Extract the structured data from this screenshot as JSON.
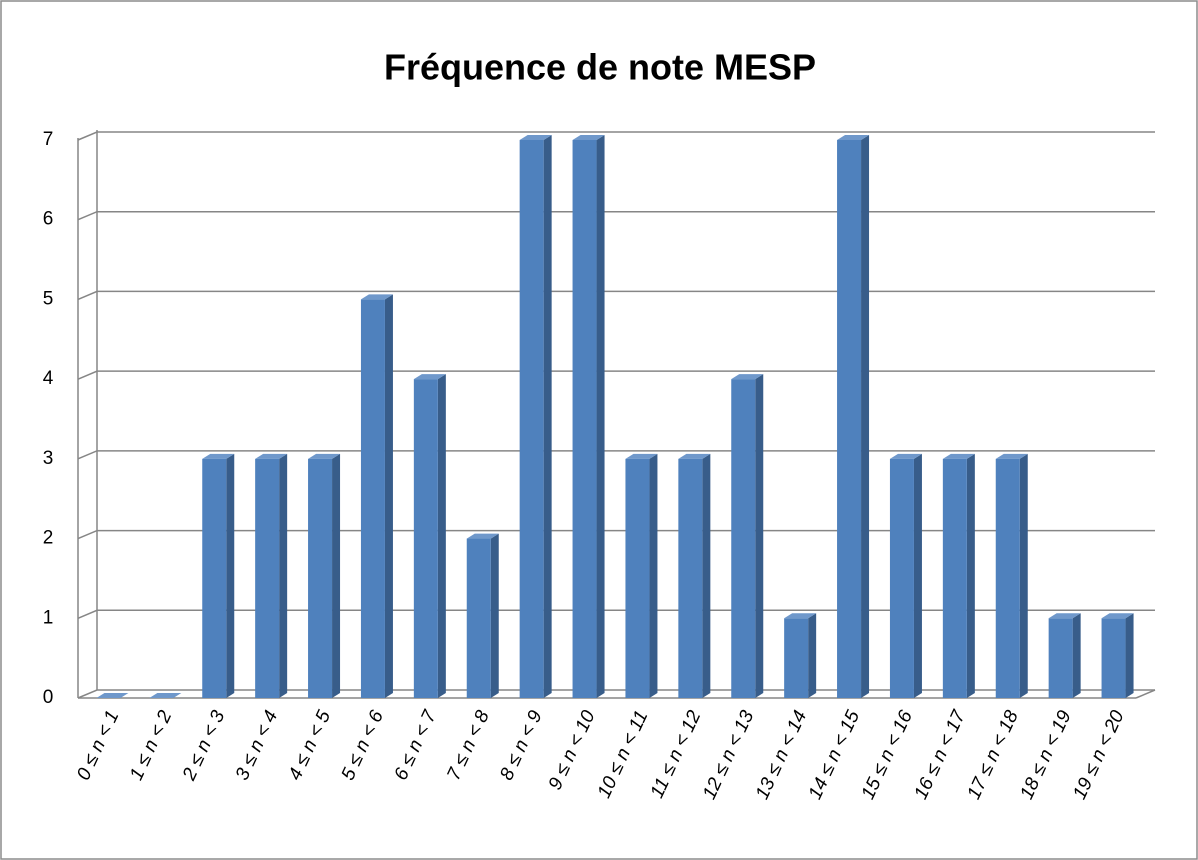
{
  "chart_data": {
    "type": "bar",
    "title": "Fréquence de note MESP",
    "categories": [
      "0 ≤ n < 1",
      "1 ≤ n < 2",
      "2 ≤ n < 3",
      "3 ≤ n < 4",
      "4 ≤ n < 5",
      "5 ≤ n < 6",
      "6 ≤ n < 7",
      "7 ≤ n < 8",
      "8 ≤ n < 9",
      "9 ≤ n  < 10",
      "10 ≤ n < 11",
      "11 ≤ n < 12",
      "12 ≤ n < 13",
      "13 ≤ n < 14",
      "14 ≤ n < 15",
      "15 ≤ n < 16",
      "16 ≤ n < 17",
      "17 ≤ n < 18",
      "18 ≤ n < 19",
      "19 ≤ n < 20"
    ],
    "values": [
      0,
      0,
      3,
      3,
      3,
      5,
      4,
      2,
      7,
      7,
      3,
      3,
      4,
      1,
      7,
      3,
      3,
      3,
      1,
      1
    ],
    "color": "#4f81bd",
    "ylim": [
      0,
      7
    ],
    "yticks": [
      0,
      1,
      2,
      3,
      4,
      5,
      6,
      7
    ],
    "grid": true
  }
}
